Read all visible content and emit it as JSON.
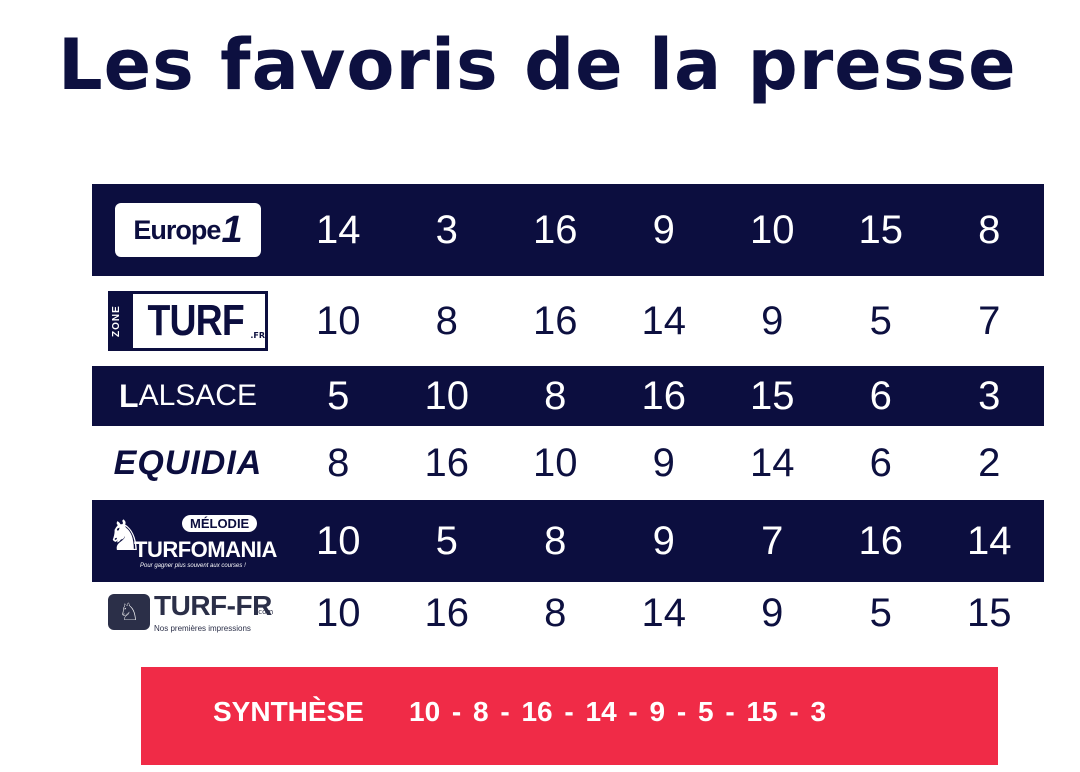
{
  "title": "Les favoris de la presse",
  "rows": [
    {
      "source": "Europe 1",
      "logo_text": "Europe",
      "logo_number": "1",
      "theme": "dark",
      "values": [
        "14",
        "3",
        "16",
        "9",
        "10",
        "15",
        "8"
      ]
    },
    {
      "source": "Zone Turf",
      "logo_zone": "ZONE",
      "logo_text": "TURF",
      "logo_suffix": ".FR",
      "theme": "light",
      "values": [
        "10",
        "8",
        "16",
        "14",
        "9",
        "5",
        "7"
      ]
    },
    {
      "source": "L'Alsace",
      "logo_l": "L",
      "logo_text": "ALSACE",
      "theme": "dark",
      "values": [
        "5",
        "10",
        "8",
        "16",
        "15",
        "6",
        "3"
      ]
    },
    {
      "source": "Equidia",
      "logo_text": "EQUIDIA",
      "theme": "light",
      "values": [
        "8",
        "16",
        "10",
        "9",
        "14",
        "6",
        "2"
      ]
    },
    {
      "source": "Mélodie Turfomania",
      "logo_top": "MÉLODIE",
      "logo_text": "TURFOMANIA",
      "logo_tagline": "Pour gagner plus souvent aux courses !",
      "theme": "dark",
      "values": [
        "10",
        "5",
        "8",
        "9",
        "7",
        "16",
        "14"
      ]
    },
    {
      "source": "Turf-FR",
      "logo_text": "TURF-FR",
      "logo_suffix": ".com",
      "logo_tagline": "Nos premières impressions",
      "theme": "light",
      "values": [
        "10",
        "16",
        "8",
        "14",
        "9",
        "5",
        "15"
      ]
    }
  ],
  "synthese": {
    "label": "SYNTHÈSE",
    "sequence": "10 - 8 - 16 - 14 - 9 - 5 - 15 - 3"
  },
  "colors": {
    "navy": "#0c0e3f",
    "red": "#f02b47",
    "white": "#ffffff"
  }
}
